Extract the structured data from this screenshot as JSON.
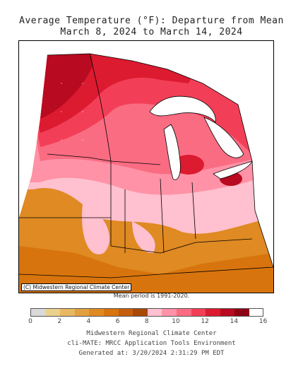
{
  "title": {
    "line1": "Average Temperature (°F): Departure from Mean",
    "line2": "March 8, 2024 to March 14, 2024"
  },
  "map": {
    "credit": "(C) Midwestern Regional Climate Center",
    "mean_period": "Mean period is 1991-2020."
  },
  "legend": {
    "colors": [
      "#d9d9d9",
      "#ecd18b",
      "#e8b860",
      "#e4a040",
      "#df8a22",
      "#d8740d",
      "#c45e0b",
      "#a84906",
      "#ffc0cf",
      "#ff92a6",
      "#fa6c82",
      "#f23f57",
      "#dc1a30",
      "#b80a20",
      "#8c0414"
    ],
    "tick_labels": [
      "0",
      "2",
      "4",
      "6",
      "8",
      "10",
      "12",
      "14",
      "16"
    ]
  },
  "footer": {
    "line1": "Midwestern Regional Climate Center",
    "line2": "cli-MATE: MRCC Application Tools Environment",
    "line3": "Generated at: 3/20/2024 2:31:29 PM EDT"
  }
}
